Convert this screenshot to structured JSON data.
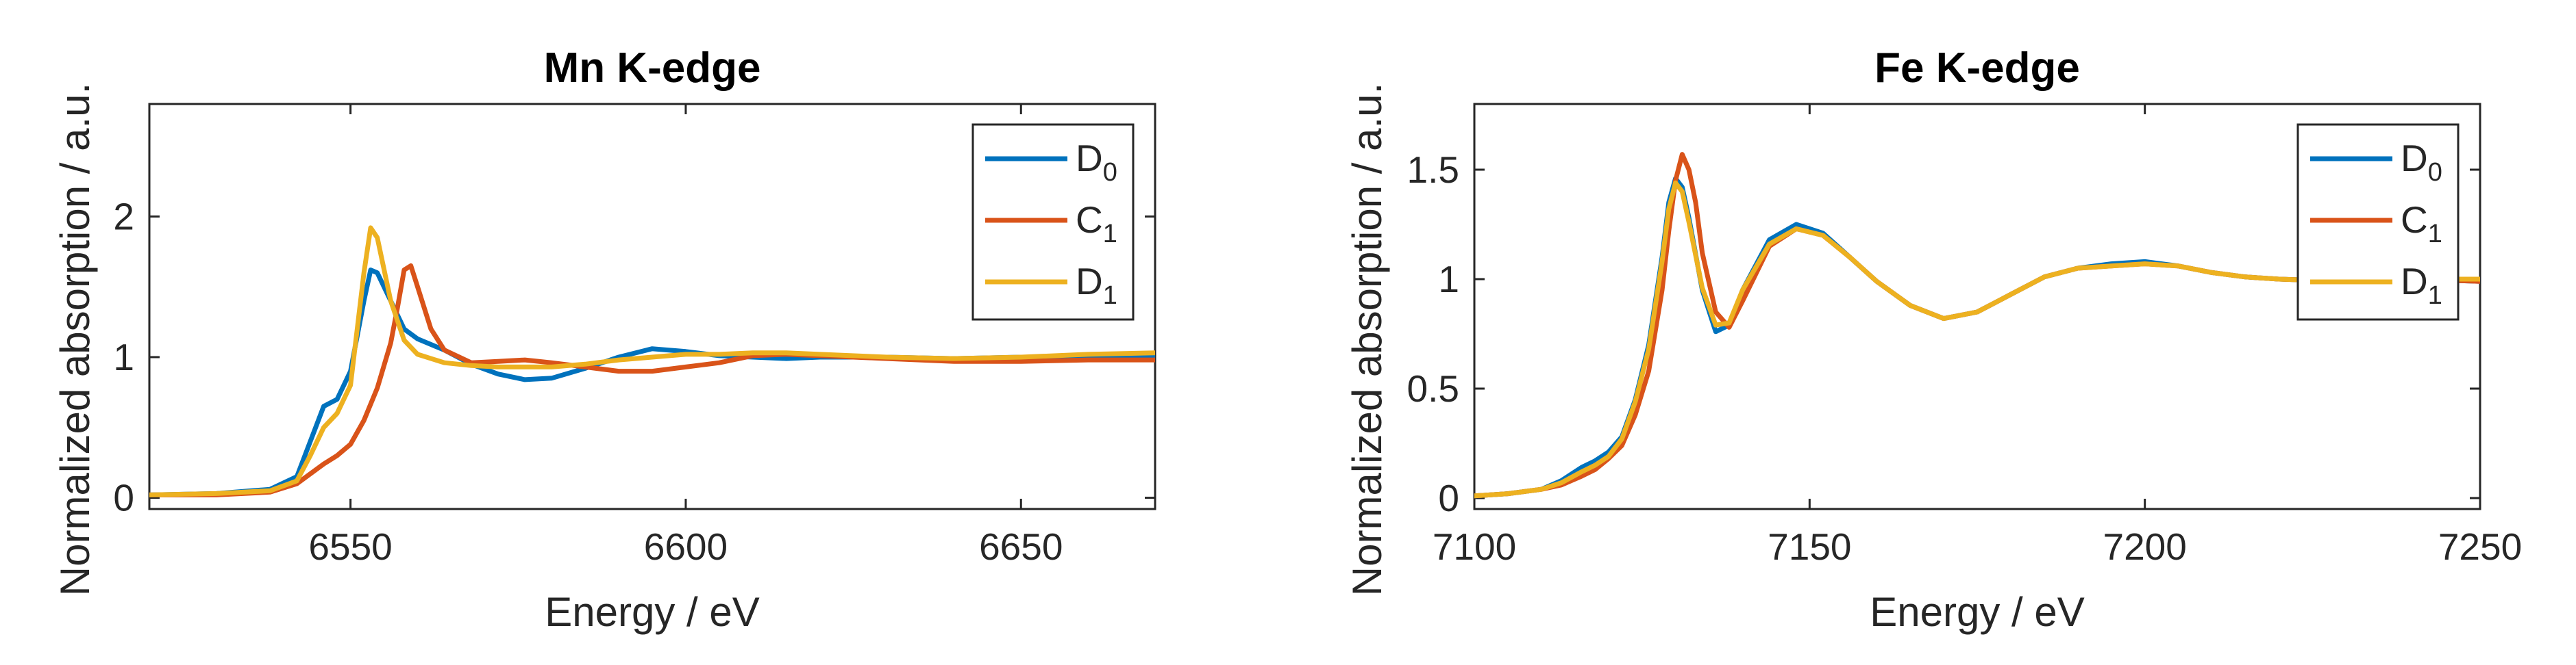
{
  "chart_data": [
    {
      "type": "line",
      "title": "Mn K-edge",
      "xlabel": "Energy / eV",
      "ylabel": "Normalized absorption / a.u.",
      "xlim": [
        6520,
        6670
      ],
      "ylim": [
        -0.08,
        2.8
      ],
      "xticks": [
        6550,
        6600,
        6650
      ],
      "yticks": [
        0,
        1,
        2
      ],
      "xtick_labels": [
        "6550",
        "6600",
        "6650"
      ],
      "ytick_labels": [
        "0",
        "1",
        "2"
      ],
      "grid": false,
      "legend_position": "top-right",
      "series": [
        {
          "name": "D",
          "subscript": "0",
          "color": "#0072BD",
          "x": [
            6520,
            6530,
            6538,
            6542,
            6544,
            6546,
            6548,
            6550,
            6552,
            6553,
            6554,
            6556,
            6558,
            6560,
            6564,
            6568,
            6572,
            6576,
            6580,
            6585,
            6590,
            6595,
            6600,
            6605,
            6610,
            6615,
            6620,
            6630,
            6640,
            6650,
            6660,
            6670
          ],
          "y": [
            0.02,
            0.03,
            0.06,
            0.15,
            0.4,
            0.65,
            0.7,
            0.9,
            1.4,
            1.62,
            1.6,
            1.4,
            1.2,
            1.13,
            1.05,
            0.95,
            0.88,
            0.84,
            0.85,
            0.92,
            1.0,
            1.06,
            1.04,
            1.01,
            1.0,
            0.99,
            1.0,
            1.0,
            0.99,
            1.0,
            1.0,
            1.0
          ]
        },
        {
          "name": "C",
          "subscript": "1",
          "color": "#D95319",
          "x": [
            6520,
            6530,
            6538,
            6542,
            6546,
            6548,
            6550,
            6552,
            6554,
            6556,
            6557,
            6558,
            6559,
            6560,
            6562,
            6564,
            6568,
            6572,
            6576,
            6580,
            6585,
            6590,
            6595,
            6600,
            6605,
            6610,
            6615,
            6620,
            6630,
            6640,
            6650,
            6660,
            6670
          ],
          "y": [
            0.02,
            0.02,
            0.04,
            0.1,
            0.24,
            0.3,
            0.38,
            0.55,
            0.78,
            1.1,
            1.35,
            1.62,
            1.65,
            1.5,
            1.2,
            1.05,
            0.96,
            0.97,
            0.98,
            0.96,
            0.93,
            0.9,
            0.9,
            0.93,
            0.96,
            1.01,
            1.02,
            1.01,
            0.99,
            0.97,
            0.97,
            0.98,
            0.98
          ]
        },
        {
          "name": "D",
          "subscript": "1",
          "color": "#EDB120",
          "x": [
            6520,
            6530,
            6538,
            6542,
            6544,
            6546,
            6548,
            6550,
            6551,
            6552,
            6553,
            6554,
            6556,
            6558,
            6560,
            6564,
            6568,
            6572,
            6576,
            6580,
            6585,
            6590,
            6595,
            6600,
            6605,
            6610,
            6615,
            6620,
            6630,
            6640,
            6650,
            6660,
            6670
          ],
          "y": [
            0.02,
            0.03,
            0.05,
            0.12,
            0.3,
            0.5,
            0.6,
            0.8,
            1.2,
            1.6,
            1.92,
            1.85,
            1.4,
            1.12,
            1.02,
            0.96,
            0.94,
            0.93,
            0.93,
            0.93,
            0.95,
            0.98,
            1.0,
            1.02,
            1.02,
            1.03,
            1.03,
            1.02,
            1.0,
            0.99,
            1.0,
            1.02,
            1.03
          ]
        }
      ]
    },
    {
      "type": "line",
      "title": "Fe K-edge",
      "xlabel": "Energy / eV",
      "ylabel": "Normalized absorption / a.u.",
      "xlim": [
        7100,
        7250
      ],
      "ylim": [
        -0.05,
        1.8
      ],
      "xticks": [
        7100,
        7150,
        7200,
        7250
      ],
      "yticks": [
        0,
        0.5,
        1,
        1.5
      ],
      "xtick_labels": [
        "7100",
        "7150",
        "7200",
        "7250"
      ],
      "ytick_labels": [
        "0",
        "0.5",
        "1",
        "1.5"
      ],
      "grid": false,
      "legend_position": "top-right",
      "series": [
        {
          "name": "D",
          "subscript": "0",
          "color": "#0072BD",
          "x": [
            7100,
            7105,
            7110,
            7113,
            7116,
            7118,
            7120,
            7122,
            7124,
            7126,
            7128,
            7129,
            7130,
            7131,
            7132,
            7134,
            7136,
            7138,
            7140,
            7144,
            7148,
            7152,
            7156,
            7160,
            7165,
            7170,
            7175,
            7180,
            7185,
            7190,
            7195,
            7200,
            7205,
            7210,
            7215,
            7220,
            7230,
            7240,
            7250
          ],
          "y": [
            0.01,
            0.02,
            0.04,
            0.08,
            0.14,
            0.17,
            0.21,
            0.28,
            0.45,
            0.7,
            1.1,
            1.35,
            1.46,
            1.42,
            1.28,
            0.95,
            0.76,
            0.79,
            0.95,
            1.18,
            1.25,
            1.21,
            1.1,
            0.99,
            0.88,
            0.82,
            0.85,
            0.93,
            1.01,
            1.05,
            1.07,
            1.08,
            1.06,
            1.03,
            1.01,
            1.0,
            0.99,
            1.0,
            0.99
          ]
        },
        {
          "name": "C",
          "subscript": "1",
          "color": "#D95319",
          "x": [
            7100,
            7105,
            7110,
            7113,
            7116,
            7118,
            7120,
            7122,
            7124,
            7126,
            7128,
            7129,
            7130,
            7131,
            7132,
            7133,
            7134,
            7136,
            7138,
            7140,
            7144,
            7148,
            7152,
            7156,
            7160,
            7165,
            7170,
            7175,
            7180,
            7185,
            7190,
            7195,
            7200,
            7205,
            7210,
            7215,
            7220,
            7230,
            7240,
            7250
          ],
          "y": [
            0.01,
            0.02,
            0.04,
            0.06,
            0.1,
            0.13,
            0.18,
            0.24,
            0.38,
            0.58,
            0.95,
            1.22,
            1.45,
            1.57,
            1.5,
            1.35,
            1.12,
            0.85,
            0.78,
            0.9,
            1.15,
            1.23,
            1.2,
            1.1,
            0.99,
            0.88,
            0.82,
            0.85,
            0.93,
            1.01,
            1.05,
            1.06,
            1.07,
            1.06,
            1.03,
            1.01,
            1.0,
            0.99,
            1.0,
            0.99
          ]
        },
        {
          "name": "D",
          "subscript": "1",
          "color": "#EDB120",
          "x": [
            7100,
            7105,
            7110,
            7113,
            7116,
            7118,
            7120,
            7122,
            7124,
            7126,
            7128,
            7129,
            7130,
            7131,
            7132,
            7134,
            7136,
            7138,
            7140,
            7144,
            7148,
            7152,
            7156,
            7160,
            7165,
            7170,
            7175,
            7180,
            7185,
            7190,
            7195,
            7200,
            7205,
            7210,
            7215,
            7220,
            7230,
            7240,
            7250
          ],
          "y": [
            0.01,
            0.02,
            0.04,
            0.07,
            0.12,
            0.15,
            0.19,
            0.27,
            0.44,
            0.68,
            1.08,
            1.32,
            1.44,
            1.4,
            1.26,
            0.96,
            0.79,
            0.8,
            0.95,
            1.16,
            1.23,
            1.2,
            1.1,
            0.99,
            0.88,
            0.82,
            0.85,
            0.93,
            1.01,
            1.05,
            1.06,
            1.07,
            1.06,
            1.03,
            1.01,
            1.0,
            0.99,
            1.0,
            1.0
          ]
        }
      ]
    }
  ]
}
